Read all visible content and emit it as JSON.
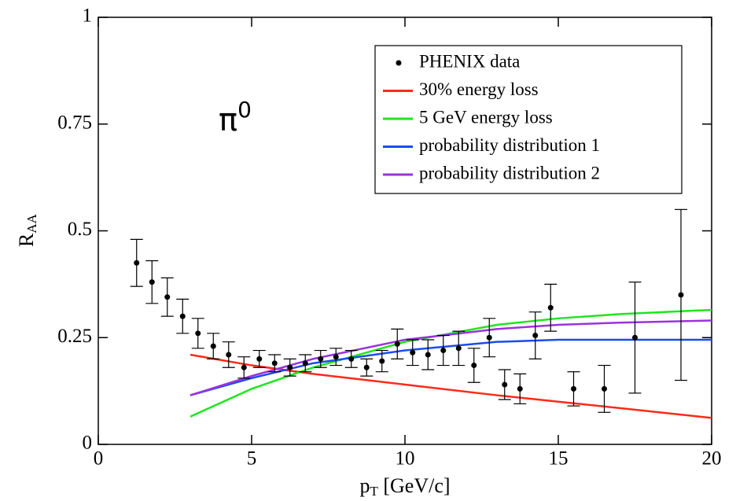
{
  "chart_data": {
    "type": "scatter",
    "xlabel": "p",
    "xlabel_sub": "T",
    "xlabel_rest": " [GeV/c]",
    "ylabel": "R",
    "ylabel_sub": "AA",
    "annotation": "π",
    "annotation_sup": "0",
    "xlim": [
      0,
      20
    ],
    "xticks": [
      0,
      5,
      10,
      15,
      20
    ],
    "ylim": [
      0,
      1
    ],
    "yticks": [
      0,
      0.25,
      0.5,
      0.75,
      1
    ],
    "legend": "upper right",
    "series": [
      {
        "name": "PHENIX data",
        "type": "scatter",
        "color": "#000000",
        "x": [
          1.25,
          1.75,
          2.25,
          2.75,
          3.25,
          3.75,
          4.25,
          4.75,
          5.25,
          5.75,
          6.25,
          6.75,
          7.25,
          7.75,
          8.25,
          8.75,
          9.25,
          9.75,
          10.25,
          10.75,
          11.25,
          11.75,
          12.25,
          12.75,
          13.25,
          13.75,
          14.25,
          14.75,
          15.5,
          16.5,
          17.5,
          19
        ],
        "values": [
          0.425,
          0.38,
          0.345,
          0.3,
          0.26,
          0.23,
          0.21,
          0.18,
          0.2,
          0.19,
          0.18,
          0.19,
          0.2,
          0.205,
          0.2,
          0.18,
          0.195,
          0.235,
          0.215,
          0.21,
          0.22,
          0.225,
          0.185,
          0.25,
          0.14,
          0.13,
          0.255,
          0.32,
          0.13,
          0.13,
          0.25,
          0.35
        ],
        "errors": [
          0.055,
          0.05,
          0.045,
          0.04,
          0.035,
          0.03,
          0.03,
          0.025,
          0.02,
          0.02,
          0.02,
          0.02,
          0.02,
          0.02,
          0.02,
          0.02,
          0.025,
          0.035,
          0.03,
          0.035,
          0.035,
          0.04,
          0.04,
          0.045,
          0.035,
          0.035,
          0.055,
          0.055,
          0.04,
          0.055,
          0.13,
          0.2
        ]
      },
      {
        "name": "30% energy loss",
        "type": "line",
        "color": "#ff2a1a",
        "x": [
          3,
          5,
          7,
          10,
          13,
          15,
          17,
          20
        ],
        "values": [
          0.21,
          0.185,
          0.165,
          0.14,
          0.115,
          0.1,
          0.085,
          0.062
        ]
      },
      {
        "name": "5 GeV energy loss",
        "type": "line",
        "color": "#1ee61e",
        "x": [
          3,
          5,
          7,
          10,
          13,
          15,
          17,
          20
        ],
        "values": [
          0.065,
          0.13,
          0.18,
          0.24,
          0.28,
          0.295,
          0.305,
          0.315
        ]
      },
      {
        "name": "probability distribution 1",
        "type": "line",
        "color": "#1a4cf0",
        "x": [
          3,
          5,
          7,
          10,
          13,
          15,
          17,
          20
        ],
        "values": [
          0.115,
          0.155,
          0.19,
          0.22,
          0.24,
          0.245,
          0.245,
          0.245
        ]
      },
      {
        "name": "probability distribution 2",
        "type": "line",
        "color": "#9933dd",
        "x": [
          3,
          5,
          7,
          10,
          13,
          15,
          17,
          20
        ],
        "values": [
          0.115,
          0.16,
          0.2,
          0.245,
          0.27,
          0.28,
          0.285,
          0.29
        ]
      }
    ]
  }
}
